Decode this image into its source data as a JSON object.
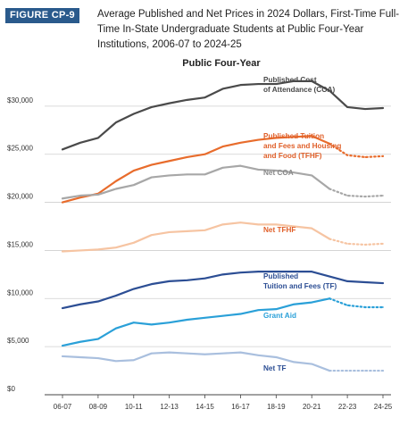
{
  "figure": {
    "badge": "FIGURE CP-9",
    "title": "Average Published and Net Prices in 2024 Dollars, First-Time Full-Time In-State Undergraduate Students at Public Four-Year Institutions, 2006-07 to 2024-25"
  },
  "chart_data": {
    "type": "line",
    "title": "Public Four-Year",
    "categories": [
      "06-07",
      "07-08",
      "08-09",
      "09-10",
      "10-11",
      "11-12",
      "12-13",
      "13-14",
      "14-15",
      "15-16",
      "16-17",
      "17-18",
      "18-19",
      "19-20",
      "20-21",
      "21-22",
      "22-23",
      "23-24",
      "24-25"
    ],
    "x_tick_labels": [
      "06-07",
      "08-09",
      "10-11",
      "12-13",
      "14-15",
      "16-17",
      "18-19",
      "20-21",
      "22-23",
      "24-25"
    ],
    "ylim": [
      0,
      35000
    ],
    "y_ticks": [
      0,
      5000,
      10000,
      15000,
      20000,
      25000,
      30000
    ],
    "y_tick_labels": [
      "$0",
      "$5,000",
      "$10,000",
      "$15,000",
      "$20,000",
      "$25,000",
      "$30,000"
    ],
    "grid": true,
    "series": [
      {
        "name": "Published Cost of Attendance (COA)",
        "color": "#4a4a4a",
        "estimated_from": null,
        "values": [
          25500,
          26200,
          26700,
          28300,
          29200,
          29900,
          30300,
          30650,
          30900,
          31800,
          32200,
          32300,
          32300,
          32600,
          32600,
          31600,
          29900,
          29700,
          29800
        ]
      },
      {
        "name": "Published Tuition and Fees and Housing and Food (TFHF)",
        "color": "#e86c2c",
        "estimated_from": 15,
        "values": [
          20000,
          20500,
          20900,
          22200,
          23300,
          23900,
          24300,
          24700,
          25000,
          25800,
          26200,
          26500,
          26700,
          26800,
          26900,
          26100,
          24900,
          24700,
          24800
        ]
      },
      {
        "name": "Net COA",
        "color": "#a7a7a7",
        "estimated_from": 15,
        "values": [
          20400,
          20700,
          20800,
          21400,
          21800,
          22600,
          22800,
          22900,
          22900,
          23600,
          23800,
          23400,
          23300,
          23100,
          22800,
          21400,
          20700,
          20600,
          20700
        ]
      },
      {
        "name": "Net TFHF",
        "color": "#f6c4a2",
        "estimated_from": 15,
        "values": [
          14900,
          15000,
          15100,
          15300,
          15800,
          16600,
          16900,
          17000,
          17100,
          17700,
          17900,
          17700,
          17700,
          17500,
          17300,
          16200,
          15700,
          15600,
          15700
        ]
      },
      {
        "name": "Published Tuition and Fees (TF)",
        "color": "#2c4e94",
        "estimated_from": null,
        "values": [
          9000,
          9400,
          9700,
          10300,
          11000,
          11500,
          11800,
          11900,
          12100,
          12500,
          12700,
          12800,
          12800,
          12800,
          12800,
          12300,
          11800,
          11700,
          11600
        ]
      },
      {
        "name": "Grant Aid",
        "color": "#2aa0d8",
        "estimated_from": 15,
        "values": [
          5100,
          5500,
          5800,
          6900,
          7500,
          7300,
          7500,
          7800,
          8000,
          8200,
          8400,
          8800,
          8900,
          9400,
          9600,
          10000,
          9300,
          9100,
          9100
        ]
      },
      {
        "name": "Net TF",
        "color": "#a9bfde",
        "estimated_from": 15,
        "values": [
          4000,
          3900,
          3800,
          3500,
          3600,
          4300,
          4400,
          4300,
          4200,
          4300,
          4400,
          4100,
          3900,
          3400,
          3200,
          2500,
          2500,
          2500,
          2500
        ]
      }
    ],
    "series_labels": [
      {
        "series": 0,
        "lines": [
          "Published Cost",
          "of Attendance (COA)"
        ],
        "color": "#4a4a4a",
        "bold": true
      },
      {
        "series": 1,
        "lines": [
          "Published Tuition",
          "and Fees and Housing",
          "and Food (TFHF)"
        ],
        "color": "#e0602a",
        "bold": true
      },
      {
        "series": 2,
        "lines": [
          "Net COA"
        ],
        "color": "#8a8a8a",
        "bold": true
      },
      {
        "series": 3,
        "lines": [
          "Net TFHF"
        ],
        "color": "#e0602a",
        "bold": true
      },
      {
        "series": 4,
        "lines": [
          "Published",
          "Tuition and Fees (TF)"
        ],
        "color": "#2c4e94",
        "bold": true
      },
      {
        "series": 5,
        "lines": [
          "Grant Aid"
        ],
        "color": "#2aa0d8",
        "bold": true
      },
      {
        "series": 6,
        "lines": [
          "Net TF"
        ],
        "color": "#2c4e94",
        "bold": true
      }
    ]
  }
}
